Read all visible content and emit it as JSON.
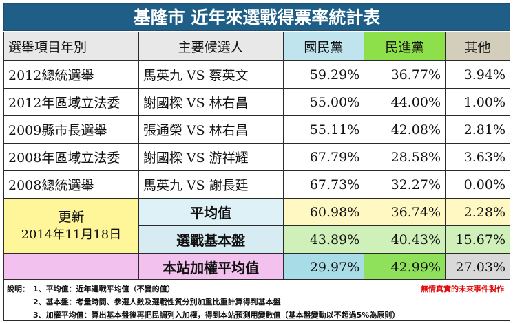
{
  "title": "基隆市 近年來選戰得票率統計表",
  "headers": [
    "選舉項目年別",
    "主要候選人",
    "國民黨",
    "民進黨",
    "其他"
  ],
  "rows": [
    {
      "item": "2012總統選舉",
      "candidates": "馬英九 VS 蔡英文",
      "kmt": "59.29%",
      "dpp": "36.77%",
      "other": "3.94%"
    },
    {
      "item": "2012年區域立法委",
      "candidates": "謝國樑 VS 林右昌",
      "kmt": "55.00%",
      "dpp": "44.00%",
      "other": "1.00%"
    },
    {
      "item": "2009縣市長選舉",
      "candidates": "張通榮 VS 林右昌",
      "kmt": "55.11%",
      "dpp": "42.08%",
      "other": "2.81%"
    },
    {
      "item": "2008年區域立法委",
      "candidates": "謝國樑 VS 游祥耀",
      "kmt": "67.79%",
      "dpp": "28.58%",
      "other": "3.63%"
    },
    {
      "item": "2008總統選舉",
      "candidates": "馬英九 VS 謝長廷",
      "kmt": "67.73%",
      "dpp": "32.27%",
      "other": "0.00%"
    }
  ],
  "update": {
    "label": "更新",
    "date": "2014年11月18日"
  },
  "summary": [
    {
      "label": "平均值",
      "kmt": "60.98%",
      "dpp": "36.74%",
      "other": "2.28%"
    },
    {
      "label": "選戰基本盤",
      "kmt": "43.89%",
      "dpp": "40.43%",
      "other": "15.67%"
    },
    {
      "label": "本站加權平均值",
      "kmt": "29.97%",
      "dpp": "42.99%",
      "other": "27.03%"
    }
  ],
  "notes": {
    "prefix": "說明：",
    "line1": "1、平均值：近年選戰平均值（不變的值）",
    "line2": "2、基本盤：考量時間、參選人數及選戰性質分別加重比重計算得到基本盤",
    "line3": "3、加權平均值：算出基本盤後再把民調列入加權，得到本站預測用變數值（基本盤變動以不超過5%為原則）",
    "credit": "無情真實的未來事件製作"
  },
  "colors": {
    "title_bg": "#1f5f87",
    "kmt_header": "#bfe4ee",
    "dpp_header": "#8ee04a",
    "other_header": "#d3cebc",
    "credit": "#e01010"
  }
}
